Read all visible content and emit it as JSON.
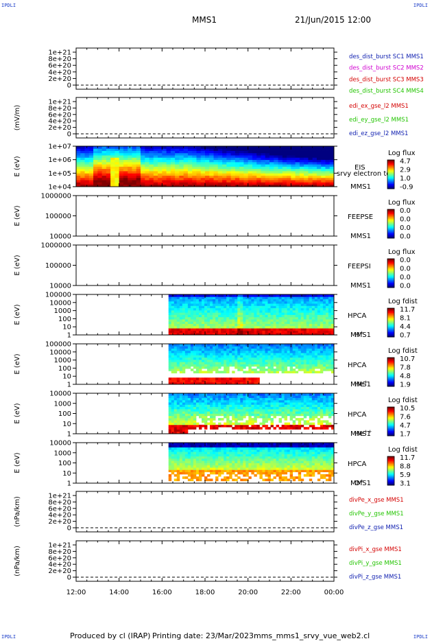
{
  "corner_label": "IPDLI",
  "header": {
    "spacecraft": "MMS1",
    "datetime": "21/Jun/2015 12:00"
  },
  "footer": {
    "produced_by": "Produced by cl (IRAP)",
    "printing_date": "Printing date: 23/Mar/2023",
    "filename": "mms_mms1_srvy_vue_web2.cl"
  },
  "colors": {
    "red": "#d40000",
    "green": "#22c400",
    "blue": "#1020b0",
    "magenta": "#d000d0",
    "black": "#000000"
  },
  "chart_data": [
    {
      "type": "line",
      "ylabel": "",
      "yticks": [
        "1e+21",
        "8e+20",
        "6e+20",
        "4e+20",
        "2e+20",
        "0"
      ],
      "legend": [
        {
          "text": "des_dist_burst SC1 MMS1",
          "color": "blue"
        },
        {
          "text": "des_dist_burst SC2 MMS2",
          "color": "magenta"
        },
        {
          "text": "des_dist_burst SC3 MMS3",
          "color": "red"
        },
        {
          "text": "des_dist_burst SC4 MMS4",
          "color": "green"
        }
      ],
      "dashed_zero": true
    },
    {
      "type": "line",
      "ylabel": "(mV/m)",
      "yticks": [
        "1e+21",
        "8e+20",
        "6e+20",
        "4e+20",
        "2e+20",
        "0"
      ],
      "legend": [
        {
          "text": "edi_ex_gse_l2 MMS1",
          "color": "red"
        },
        {
          "text": "edi_ey_gse_l2 MMS1",
          "color": "green"
        },
        {
          "text": "edi_ez_gse_l2 MMS1",
          "color": "blue"
        }
      ],
      "dashed_zero": true
    },
    {
      "type": "heatmap",
      "ylabel": "E (eV)",
      "yticks": [
        "1e+07",
        "1e+06",
        "1e+05",
        "1e+04"
      ],
      "side_labels": [
        "EIS",
        "srvy electron to",
        "MMS1"
      ],
      "colorbar": {
        "title": "Log flux",
        "ticks": [
          "4.7",
          "2.9",
          "1.0",
          "-0.9"
        ]
      },
      "data_start_hour": 12.0,
      "pattern": "eis"
    },
    {
      "type": "heatmap",
      "ylabel": "E (eV)",
      "yticks": [
        "1000000",
        "100000",
        "10000"
      ],
      "side_labels": [
        "FEEPSE",
        "MMS1"
      ],
      "colorbar": {
        "title": "Log flux",
        "ticks": [
          "0.0",
          "0.0",
          "0.0",
          "0.0"
        ]
      },
      "pattern": "none"
    },
    {
      "type": "heatmap",
      "ylabel": "E (eV)",
      "yticks": [
        "1000000",
        "100000",
        "10000"
      ],
      "side_labels": [
        "FEEPSI",
        "MMS1"
      ],
      "colorbar": {
        "title": "Log flux",
        "ticks": [
          "0.0",
          "0.0",
          "0.0",
          "0.0"
        ]
      },
      "pattern": "none"
    },
    {
      "type": "heatmap",
      "ylabel": "E (eV)",
      "yticks": [
        "100000",
        "10000",
        "1000",
        "100",
        "10",
        "1"
      ],
      "side_labels": [
        "HPCA",
        "MMS1"
      ],
      "species": {
        "base": "H",
        "sup": "+"
      },
      "colorbar": {
        "title": "Log fdist",
        "ticks": [
          "11.7",
          "8.1",
          "4.4",
          "0.7"
        ]
      },
      "data_start_hour": 16.3,
      "pattern": "hplus"
    },
    {
      "type": "heatmap",
      "ylabel": "E (eV)",
      "yticks": [
        "100000",
        "10000",
        "1000",
        "100",
        "10",
        "1"
      ],
      "side_labels": [
        "HPCA",
        "MMS1"
      ],
      "species": {
        "base": "He",
        "sup": "+"
      },
      "colorbar": {
        "title": "Log fdist",
        "ticks": [
          "10.7",
          "7.8",
          "4.8",
          "1.9"
        ]
      },
      "data_start_hour": 16.3,
      "pattern": "heplus"
    },
    {
      "type": "heatmap",
      "ylabel": "E (eV)",
      "yticks": [
        "10000",
        "1000",
        "100",
        "10",
        "1"
      ],
      "side_labels": [
        "HPCA",
        "MMS1"
      ],
      "species": {
        "base": "He",
        "sup": "++"
      },
      "colorbar": {
        "title": "Log fdist",
        "ticks": [
          "10.5",
          "7.6",
          "4.7",
          "1.7"
        ]
      },
      "data_start_hour": 16.3,
      "pattern": "hepp"
    },
    {
      "type": "heatmap",
      "ylabel": "E (eV)",
      "yticks": [
        "10000",
        "1000",
        "100",
        "10",
        "1"
      ],
      "side_labels": [
        "HPCA",
        "MMS1"
      ],
      "species": {
        "base": "O",
        "sup": "+"
      },
      "colorbar": {
        "title": "Log fdist",
        "ticks": [
          "11.7",
          "8.8",
          "5.9",
          "3.1"
        ]
      },
      "data_start_hour": 16.3,
      "pattern": "oplus"
    },
    {
      "type": "line",
      "ylabel": "(nPa/km)",
      "yticks": [
        "1e+21",
        "8e+20",
        "6e+20",
        "4e+20",
        "2e+20",
        "0"
      ],
      "legend": [
        {
          "text": "divPe_x_gse MMS1",
          "color": "red"
        },
        {
          "text": "divPe_y_gse MMS1",
          "color": "green"
        },
        {
          "text": "divPe_z_gse MMS1",
          "color": "blue"
        }
      ],
      "dashed_zero": true
    },
    {
      "type": "line",
      "ylabel": "(nPa/km)",
      "yticks": [
        "1e+21",
        "8e+20",
        "6e+20",
        "4e+20",
        "2e+20",
        "0"
      ],
      "legend": [
        {
          "text": "divPi_x_gse MMS1",
          "color": "red"
        },
        {
          "text": "divPi_y_gse MMS1",
          "color": "green"
        },
        {
          "text": "divPi_z_gse MMS1",
          "color": "blue"
        }
      ],
      "dashed_zero": true
    }
  ],
  "time_axis": {
    "start_hour": 12,
    "end_hour": 24,
    "tick_labels": [
      "12:00",
      "14:00",
      "16:00",
      "18:00",
      "20:00",
      "22:00",
      "00:00"
    ]
  }
}
